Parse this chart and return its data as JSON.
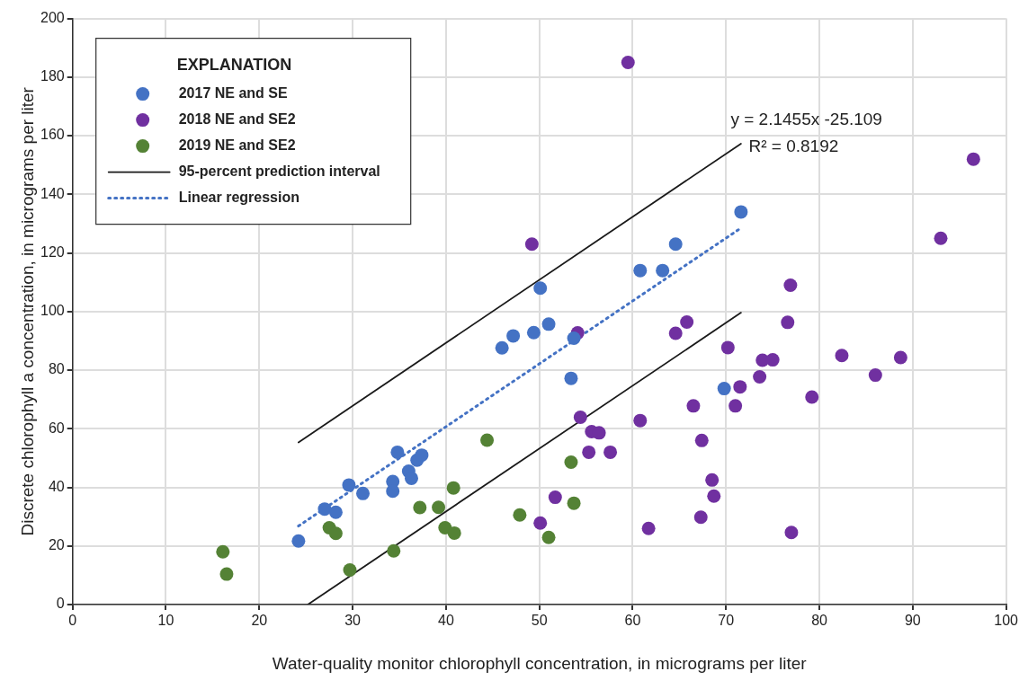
{
  "chart_data": {
    "type": "scatter",
    "xlabel": "Water-quality monitor chlorophyll concentration, in micrograms per liter",
    "ylabel": "Discrete chlorophyll a concentration, in micrograms per liter",
    "legend_title": "EXPLANATION",
    "legend": "top left",
    "grid": true,
    "marker": "circle",
    "xlim": [
      0,
      100
    ],
    "xticks": [
      0,
      10,
      20,
      30,
      40,
      50,
      60,
      70,
      80,
      90,
      100
    ],
    "ylim": [
      0,
      200
    ],
    "yticks": [
      0,
      20,
      40,
      60,
      80,
      100,
      120,
      140,
      160,
      180,
      200
    ],
    "annotations": [
      "y = 2.1455x -25.109",
      "R² = 0.8192"
    ],
    "series": [
      {
        "name": "2017 NE and SE",
        "color": "#4472c4",
        "x": [
          24.2,
          27,
          28.2,
          29.6,
          31.1,
          34.3,
          34.3,
          34.8,
          36,
          36.3,
          36.9,
          37.4,
          46,
          47.2,
          49.4,
          50.1,
          51,
          53.4,
          53.7,
          60.8,
          63.2,
          64.6,
          69.8,
          71.6
        ],
        "values": [
          21.7,
          32.6,
          31.5,
          40.8,
          37.9,
          42,
          38.7,
          52,
          45.5,
          43.1,
          49.3,
          51,
          87.6,
          91.7,
          92.8,
          108,
          95.7,
          77.2,
          90.9,
          114,
          114,
          123,
          73.7,
          134
        ]
      },
      {
        "name": "2018 NE and SE2",
        "color": "#7030a0",
        "x": [
          49.2,
          59.5,
          50.1,
          51.7,
          54.1,
          54.4,
          55.3,
          55.6,
          56.4,
          57.6,
          60.8,
          61.7,
          64.6,
          65.8,
          66.5,
          67.3,
          67.4,
          68.5,
          68.7,
          70.2,
          71,
          71.5,
          73.6,
          73.9,
          75,
          76.6,
          76.9,
          77,
          79.2,
          82.4,
          86,
          88.7,
          93,
          96.5
        ],
        "values": [
          123,
          185,
          27.8,
          36.6,
          92.7,
          63.9,
          52,
          59,
          58.6,
          52,
          62.8,
          26,
          92.6,
          96.4,
          67.8,
          29.8,
          56,
          42.5,
          37,
          87.7,
          67.8,
          74.3,
          77.7,
          83.4,
          83.5,
          96.3,
          109,
          24.6,
          70.8,
          85,
          78.3,
          84.3,
          125,
          152
        ]
      },
      {
        "name": "2019 NE and SE2",
        "color": "#548235",
        "x": [
          16.1,
          16.5,
          27.5,
          28.2,
          29.7,
          34.4,
          37.2,
          39.2,
          39.9,
          40.8,
          40.9,
          44.4,
          47.9,
          51,
          53.4,
          53.7
        ],
        "values": [
          18,
          10.4,
          26.2,
          24.3,
          11.8,
          18.3,
          33.1,
          33.2,
          26.2,
          39.8,
          24.4,
          56.1,
          30.6,
          22.9,
          48.6,
          34.6
        ]
      },
      {
        "name": "95-percent prediction interval",
        "type": "line",
        "color": "#1a1a1a",
        "line_style": "solid",
        "marker": "none",
        "x": [
          24.2,
          71.6
        ],
        "values": [
          55.3,
          157.3
        ]
      },
      {
        "type": "line",
        "color": "#1a1a1a",
        "line_style": "solid",
        "marker": "none",
        "x": [
          25.2,
          71.6
        ],
        "values": [
          0,
          99.6
        ]
      },
      {
        "name": "Linear regression",
        "type": "line",
        "color": "#4472c4",
        "line_style": "dotted",
        "marker": "none",
        "x": [
          24.2,
          71.6
        ],
        "values": [
          26.8,
          128.5
        ]
      }
    ]
  }
}
